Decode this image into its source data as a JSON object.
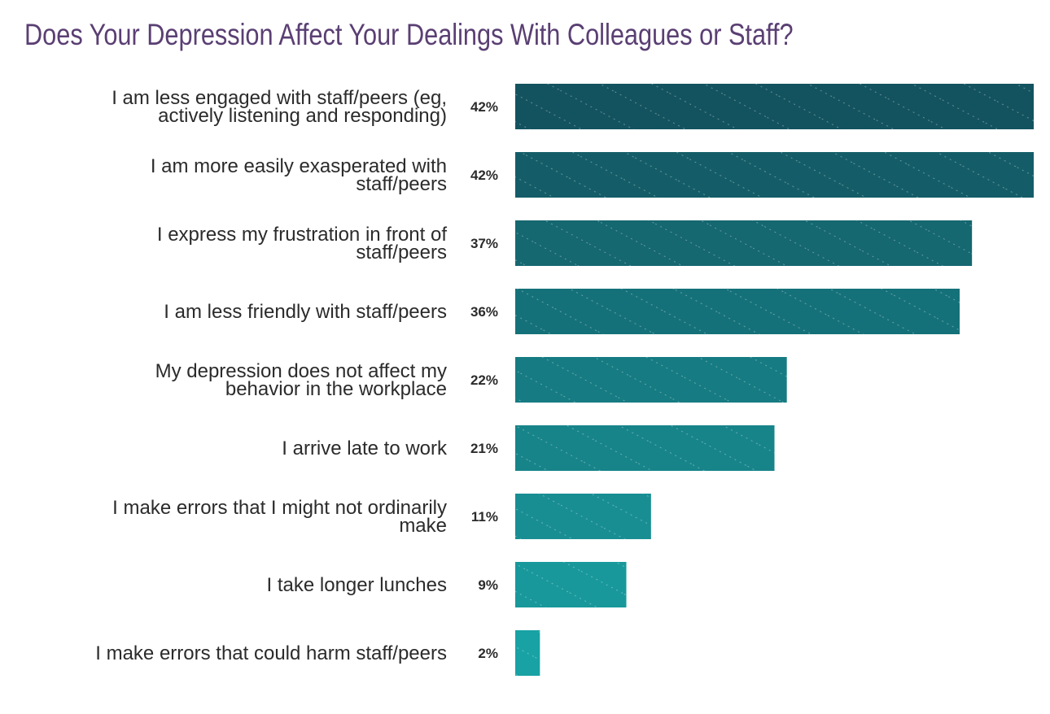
{
  "chart_data": {
    "type": "bar",
    "orientation": "horizontal",
    "title": "Does Your Depression Affect Your Dealings With Colleagues or Staff?",
    "xlabel": "",
    "ylabel": "",
    "xlim": [
      0,
      42
    ],
    "grid": false,
    "categories": [
      [
        "I am less engaged with staff/peers (eg,",
        "actively listening and responding)"
      ],
      [
        "I am more easily exasperated with",
        "staff/peers"
      ],
      [
        "I express my frustration in front of",
        "staff/peers"
      ],
      [
        "I am less friendly with staff/peers"
      ],
      [
        "My depression does not affect my",
        "behavior in the workplace"
      ],
      [
        "I arrive late to work"
      ],
      [
        "I make errors that I might not ordinarily",
        "make"
      ],
      [
        "I take longer lunches"
      ],
      [
        "I make errors that could harm staff/peers"
      ]
    ],
    "values": [
      42,
      42,
      37,
      36,
      22,
      21,
      11,
      9,
      2
    ],
    "value_labels": [
      "42%",
      "42%",
      "37%",
      "36%",
      "22%",
      "21%",
      "11%",
      "9%",
      "2%"
    ],
    "colors": {
      "first_bar": "#13535f",
      "last_bar": "#19a2a4",
      "title": "#5a3f73"
    }
  }
}
